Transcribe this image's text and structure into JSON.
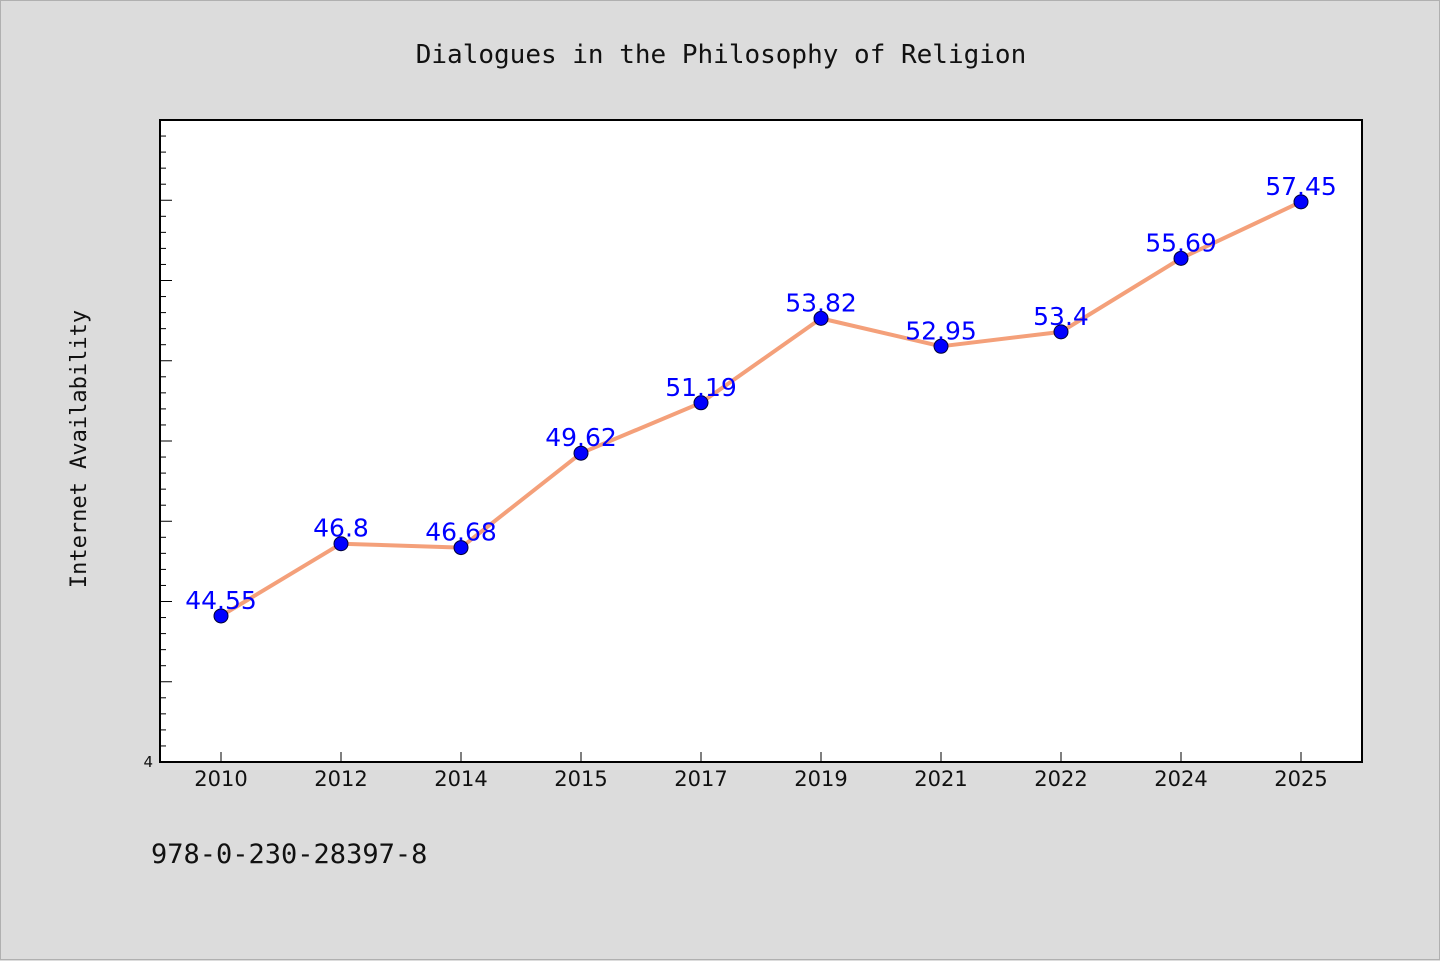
{
  "chart_data": {
    "type": "line",
    "title": "Dialogues in the Philosophy of Religion",
    "xlabel": "",
    "ylabel": "Internet Availability",
    "categories": [
      "2010",
      "2012",
      "2014",
      "2015",
      "2017",
      "2019",
      "2021",
      "2022",
      "2024",
      "2025"
    ],
    "series": [
      {
        "values": [
          44.55,
          46.8,
          46.68,
          49.62,
          51.19,
          53.82,
          52.95,
          53.4,
          55.69,
          57.45
        ],
        "labels": [
          "44.55",
          "46.8",
          "46.68",
          "49.62",
          "51.19",
          "53.82",
          "52.95",
          "53.4",
          "55.69",
          "57.45"
        ]
      }
    ],
    "ylim": [
      40,
      60
    ],
    "y_tick_label": "4",
    "grid": false,
    "legend": "none",
    "line_color": "#f4a07a",
    "marker_color": "#0000ff",
    "label_color": "#0000ff"
  },
  "footer": {
    "isbn": "978-0-230-28397-8"
  }
}
